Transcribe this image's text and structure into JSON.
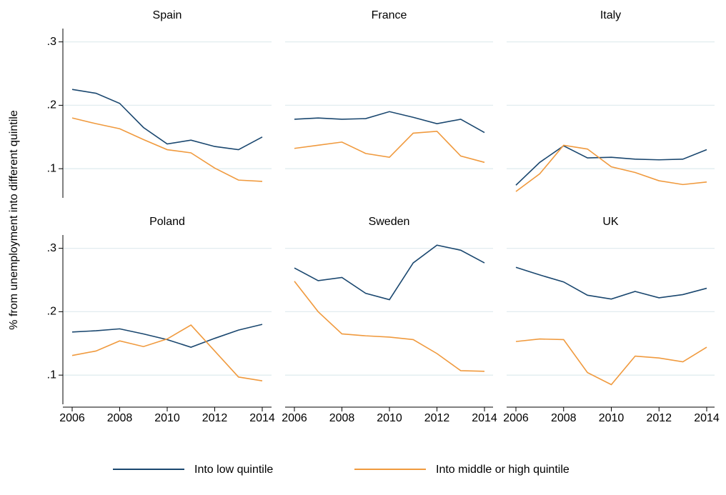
{
  "chart_data": {
    "type": "line",
    "ylabel": "% from unemployment into different quintile",
    "x": [
      2006,
      2007,
      2008,
      2009,
      2010,
      2011,
      2012,
      2013,
      2014
    ],
    "xlim": [
      2006,
      2014
    ],
    "xticks": [
      2006,
      2008,
      2010,
      2012,
      2014
    ],
    "ylim": [
      0.054,
      0.321
    ],
    "yticks": [
      {
        "value": 0.1,
        "label": ".1"
      },
      {
        "value": 0.2,
        "label": ".2"
      },
      {
        "value": 0.3,
        "label": ".3"
      }
    ],
    "grid": true,
    "legend_position": "bottom",
    "legend": [
      {
        "name": "Into low quintile",
        "color": "#1a476f"
      },
      {
        "name": "Into middle or high quintile",
        "color": "#f09a3e"
      }
    ],
    "panels": [
      {
        "title": "Spain",
        "series": [
          {
            "values": [
              0.225,
              0.219,
              0.203,
              0.165,
              0.139,
              0.145,
              0.135,
              0.13,
              0.15
            ]
          },
          {
            "values": [
              0.18,
              0.171,
              0.163,
              0.146,
              0.13,
              0.125,
              0.101,
              0.082,
              0.08
            ]
          }
        ]
      },
      {
        "title": "France",
        "series": [
          {
            "values": [
              0.178,
              0.18,
              0.178,
              0.179,
              0.19,
              0.181,
              0.171,
              0.178,
              0.157
            ]
          },
          {
            "values": [
              0.132,
              0.137,
              0.142,
              0.124,
              0.118,
              0.156,
              0.159,
              0.12,
              0.11
            ]
          }
        ]
      },
      {
        "title": "Italy",
        "series": [
          {
            "values": [
              0.074,
              0.11,
              0.136,
              0.117,
              0.118,
              0.115,
              0.114,
              0.115,
              0.13
            ]
          },
          {
            "values": [
              0.064,
              0.092,
              0.137,
              0.131,
              0.103,
              0.094,
              0.081,
              0.075,
              0.079
            ]
          }
        ]
      },
      {
        "title": "Poland",
        "series": [
          {
            "values": [
              0.168,
              0.17,
              0.173,
              0.165,
              0.156,
              0.144,
              0.158,
              0.171,
              0.18
            ]
          },
          {
            "values": [
              0.131,
              0.138,
              0.154,
              0.145,
              0.157,
              0.179,
              0.138,
              0.097,
              0.091
            ]
          }
        ]
      },
      {
        "title": "Sweden",
        "series": [
          {
            "values": [
              0.269,
              0.249,
              0.254,
              0.229,
              0.219,
              0.277,
              0.305,
              0.297,
              0.277
            ]
          },
          {
            "values": [
              0.248,
              0.2,
              0.165,
              0.162,
              0.16,
              0.156,
              0.134,
              0.107,
              0.106
            ]
          }
        ]
      },
      {
        "title": "UK",
        "series": [
          {
            "values": [
              0.27,
              0.258,
              0.247,
              0.226,
              0.22,
              0.232,
              0.222,
              0.227,
              0.237
            ]
          },
          {
            "values": [
              0.153,
              0.157,
              0.156,
              0.104,
              0.085,
              0.13,
              0.127,
              0.121,
              0.144
            ]
          }
        ]
      }
    ]
  }
}
